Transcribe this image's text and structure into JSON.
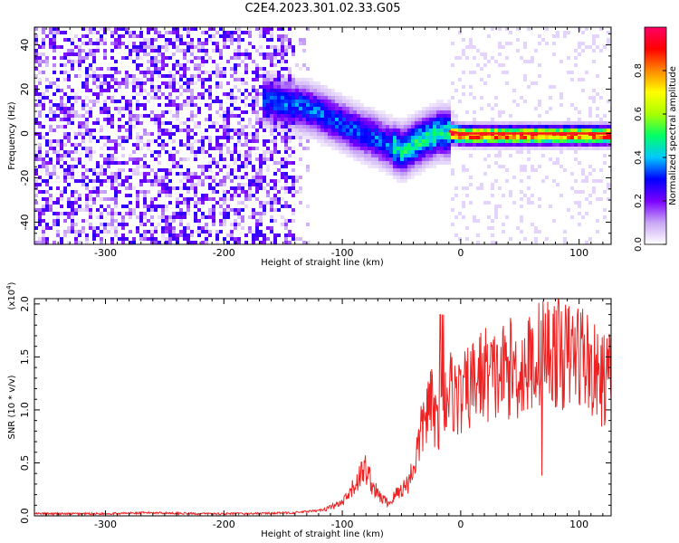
{
  "title": "C2E4.2023.301.02.33.G05",
  "chart_data": [
    {
      "type": "heatmap",
      "xlabel": "Height of straight line (km)",
      "ylabel": "Frequency (Hz)",
      "xlim": [
        -360,
        127
      ],
      "ylim": [
        -50,
        48
      ],
      "xticks": [
        -300,
        -200,
        -100,
        0,
        100
      ],
      "yticks": [
        -40,
        -20,
        0,
        20,
        40
      ],
      "colorbar": {
        "label": "Normalized spectral amplitude",
        "range": [
          0.0,
          1.0
        ],
        "ticks": [
          "0.0",
          "0.2",
          "0.4",
          "0.6",
          "0.8"
        ],
        "colors": [
          "#ffffff",
          "#c9a7f5",
          "#7a00ff",
          "#0000ff",
          "#00c8ff",
          "#00ff66",
          "#aaff00",
          "#ffff00",
          "#ff8800",
          "#ff0000",
          "#ff0066"
        ]
      },
      "tone_track": {
        "x": [
          -165,
          -150,
          -135,
          -120,
          -105,
          -90,
          -75,
          -60,
          -50,
          -40,
          -30,
          -20,
          -10,
          0,
          50,
          100,
          127
        ],
        "frequency": [
          16,
          14,
          13,
          10,
          6,
          2,
          -1,
          -5,
          -7,
          -4,
          -1,
          1,
          1,
          0,
          0,
          0,
          0
        ]
      }
    },
    {
      "type": "line",
      "xlabel": "Height of straight line (km)",
      "ylabel": "SNR (10 * v/v)",
      "scale_label": "(x10",
      "scale_exponent": "4",
      "scale_close": ")",
      "xlim": [
        -360,
        127
      ],
      "ylim": [
        0,
        2.05
      ],
      "xticks": [
        -300,
        -200,
        -100,
        0,
        100
      ],
      "yticks": [
        "0.0",
        "0.5",
        "1.0",
        "1.5",
        "2.0"
      ],
      "series": [
        {
          "color": "#ee2222",
          "x": [
            -360,
            -330,
            -300,
            -260,
            -220,
            -180,
            -140,
            -120,
            -110,
            -100,
            -95,
            -90,
            -85,
            -80,
            -75,
            -70,
            -65,
            -60,
            -55,
            -50,
            -45,
            -40,
            -35,
            -30,
            -25,
            -20,
            -15,
            -10,
            -5,
            0,
            10,
            20,
            30,
            40,
            50,
            60,
            65,
            68,
            70,
            75,
            80,
            90,
            100,
            105,
            110,
            115,
            120,
            127
          ],
          "y": [
            0.02,
            0.02,
            0.02,
            0.03,
            0.02,
            0.02,
            0.03,
            0.05,
            0.08,
            0.12,
            0.18,
            0.28,
            0.38,
            0.45,
            0.3,
            0.2,
            0.15,
            0.12,
            0.2,
            0.25,
            0.3,
            0.45,
            0.7,
            0.95,
            1.05,
            0.9,
            1.1,
            1.2,
            1.15,
            1.1,
            1.25,
            1.35,
            1.3,
            1.4,
            1.35,
            1.45,
            1.5,
            1.55,
            1.6,
            1.55,
            1.55,
            1.5,
            1.55,
            1.5,
            1.4,
            1.3,
            1.28,
            1.32
          ]
        }
      ]
    }
  ]
}
